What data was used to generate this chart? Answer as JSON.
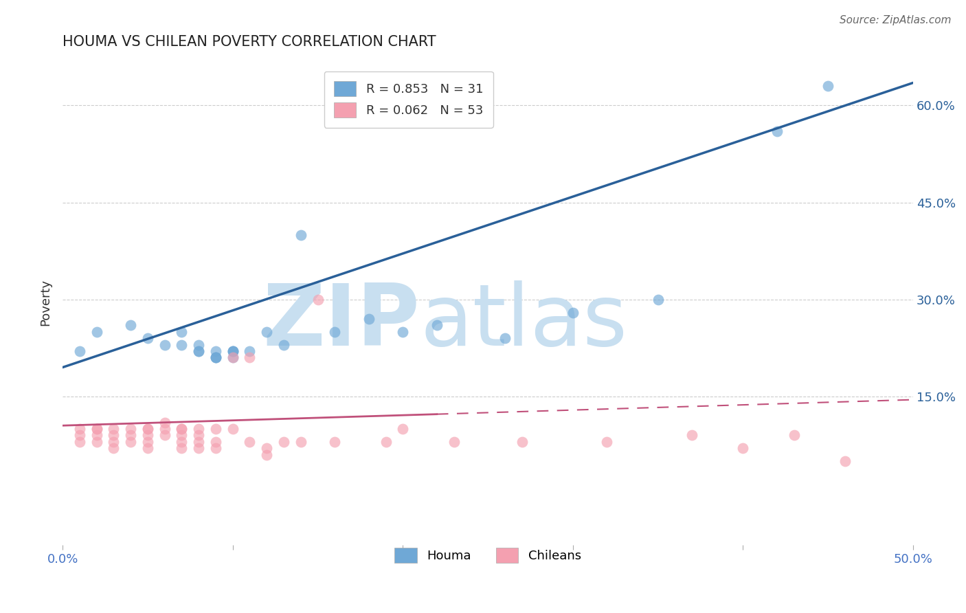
{
  "title": "HOUMA VS CHILEAN POVERTY CORRELATION CHART",
  "source": "Source: ZipAtlas.com",
  "ylabel": "Poverty",
  "xlim": [
    0.0,
    0.5
  ],
  "ylim": [
    -0.08,
    0.67
  ],
  "yticks": [
    0.15,
    0.3,
    0.45,
    0.6
  ],
  "ytick_labels": [
    "15.0%",
    "30.0%",
    "45.0%",
    "60.0%"
  ],
  "xticks": [
    0.0,
    0.1,
    0.2,
    0.3,
    0.4,
    0.5
  ],
  "xtick_labels": [
    "0.0%",
    "",
    "",
    "",
    "",
    "50.0%"
  ],
  "houma_R": 0.853,
  "houma_N": 31,
  "chilean_R": 0.062,
  "chilean_N": 53,
  "houma_color": "#6fa8d6",
  "houma_line_color": "#2a6099",
  "chilean_color": "#f4a0b0",
  "chilean_line_color": "#c0507a",
  "background_color": "#ffffff",
  "grid_color": "#cccccc",
  "watermark_zip": "ZIP",
  "watermark_atlas": "atlas",
  "watermark_color_zip": "#c8dff0",
  "watermark_color_atlas": "#c8dff0",
  "xlabel_color": "#4472c4",
  "houma_x": [
    0.01,
    0.02,
    0.04,
    0.05,
    0.06,
    0.07,
    0.07,
    0.08,
    0.08,
    0.08,
    0.09,
    0.09,
    0.09,
    0.09,
    0.1,
    0.1,
    0.1,
    0.1,
    0.11,
    0.12,
    0.13,
    0.14,
    0.16,
    0.18,
    0.2,
    0.22,
    0.26,
    0.3,
    0.35,
    0.42,
    0.45
  ],
  "houma_y": [
    0.22,
    0.25,
    0.26,
    0.24,
    0.23,
    0.23,
    0.25,
    0.22,
    0.23,
    0.22,
    0.21,
    0.21,
    0.22,
    0.21,
    0.22,
    0.22,
    0.21,
    0.22,
    0.22,
    0.25,
    0.23,
    0.4,
    0.25,
    0.27,
    0.25,
    0.26,
    0.24,
    0.28,
    0.3,
    0.56,
    0.63
  ],
  "chilean_x": [
    0.01,
    0.01,
    0.01,
    0.02,
    0.02,
    0.02,
    0.02,
    0.03,
    0.03,
    0.03,
    0.03,
    0.04,
    0.04,
    0.04,
    0.05,
    0.05,
    0.05,
    0.05,
    0.05,
    0.06,
    0.06,
    0.06,
    0.07,
    0.07,
    0.07,
    0.07,
    0.07,
    0.08,
    0.08,
    0.08,
    0.08,
    0.09,
    0.09,
    0.09,
    0.1,
    0.1,
    0.11,
    0.11,
    0.12,
    0.12,
    0.13,
    0.14,
    0.15,
    0.16,
    0.19,
    0.2,
    0.23,
    0.27,
    0.32,
    0.37,
    0.4,
    0.43,
    0.46
  ],
  "chilean_y": [
    0.1,
    0.09,
    0.08,
    0.1,
    0.1,
    0.09,
    0.08,
    0.1,
    0.09,
    0.08,
    0.07,
    0.1,
    0.09,
    0.08,
    0.1,
    0.1,
    0.09,
    0.08,
    0.07,
    0.11,
    0.1,
    0.09,
    0.1,
    0.1,
    0.09,
    0.08,
    0.07,
    0.1,
    0.09,
    0.08,
    0.07,
    0.1,
    0.08,
    0.07,
    0.21,
    0.1,
    0.08,
    0.21,
    0.07,
    0.06,
    0.08,
    0.08,
    0.3,
    0.08,
    0.08,
    0.1,
    0.08,
    0.08,
    0.08,
    0.09,
    0.07,
    0.09,
    0.05
  ],
  "houma_line_x0": 0.0,
  "houma_line_y0": 0.195,
  "houma_line_x1": 0.5,
  "houma_line_y1": 0.635,
  "chilean_line_x0": 0.0,
  "chilean_line_y0": 0.105,
  "chilean_line_x1": 0.5,
  "chilean_line_y1": 0.145,
  "chilean_line_solid_end": 0.22
}
